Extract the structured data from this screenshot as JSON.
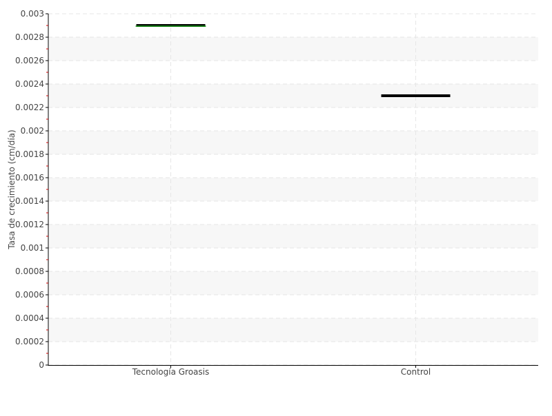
{
  "chart_data": {
    "type": "box",
    "title": "",
    "xlabel": "",
    "ylabel": "Tasa de crecimiento (cm/día)",
    "ylim": [
      0,
      0.003
    ],
    "yticks": [
      "0",
      "0.0002",
      "0.0004",
      "0.0006",
      "0.0008",
      "0.001",
      "0.0012",
      "0.0014",
      "0.0016",
      "0.0018",
      "0.002",
      "0.0022",
      "0.0024",
      "0.0026",
      "0.0028",
      "0.003"
    ],
    "categories": [
      "Tecnología Groasis",
      "Control"
    ],
    "values": [
      0.0029,
      0.0023
    ],
    "grid": true,
    "colors": {
      "median_groasis": "#22aa22",
      "box": "#000000",
      "minor_tick": "#cc0000",
      "band": "#f7f7f7"
    }
  }
}
